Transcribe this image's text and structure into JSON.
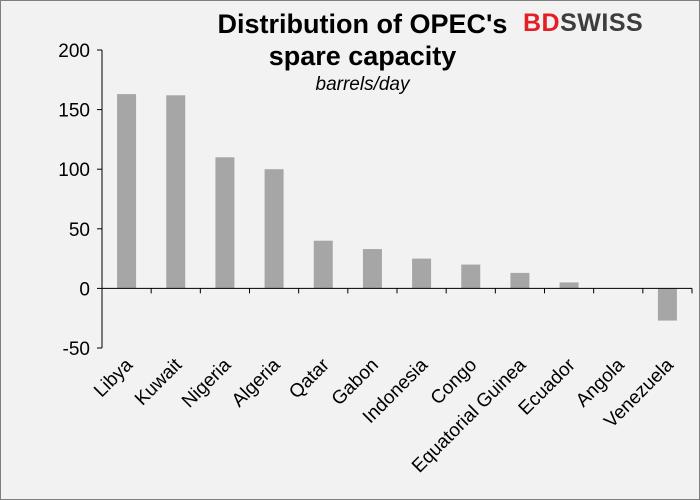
{
  "logo": {
    "part1": "BD",
    "part2": "SWISS"
  },
  "chart_data": {
    "type": "bar",
    "title_line1": "Distribution of OPEC's",
    "title_line2": "spare capacity",
    "subtitle": "barrels/day",
    "xlabel": "",
    "ylabel": "",
    "categories": [
      "Libya",
      "Kuwait",
      "Nigeria",
      "Algeria",
      "Qatar",
      "Gabon",
      "Indonesia",
      "Congo",
      "Equatorial Guinea",
      "Ecuador",
      "Angola",
      "Venezuela"
    ],
    "values": [
      163,
      162,
      110,
      100,
      40,
      33,
      25,
      20,
      13,
      5,
      0,
      -27
    ],
    "ylim": [
      -50,
      200
    ],
    "yticks": [
      -50,
      0,
      50,
      100,
      150,
      200
    ],
    "bar_color": "#a6a6a6",
    "grid": false,
    "legend": "none"
  }
}
